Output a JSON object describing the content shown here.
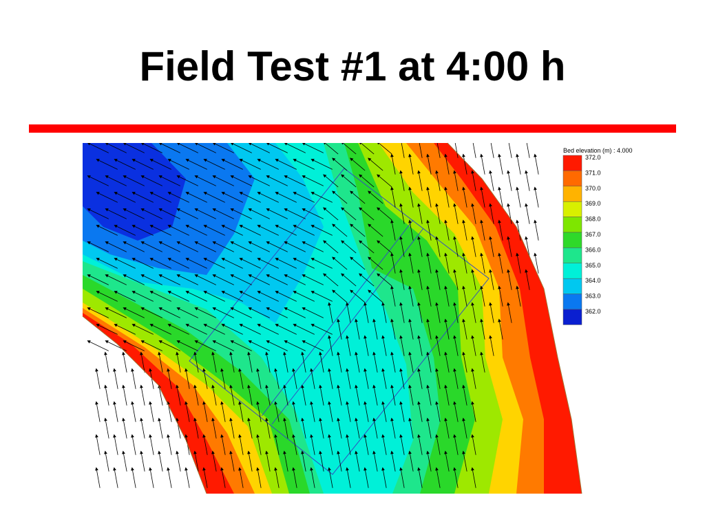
{
  "slide": {
    "title": "Field Test #1 at 4:00 h"
  },
  "legend": {
    "title": "Bed elevation (m) : 4.000",
    "levels": [
      {
        "label": "372.0",
        "color": "#ff1a00"
      },
      {
        "label": "371.0",
        "color": "#ff6a00"
      },
      {
        "label": "370.0",
        "color": "#ffb300"
      },
      {
        "label": "369.0",
        "color": "#d8f000"
      },
      {
        "label": "368.0",
        "color": "#7ee600"
      },
      {
        "label": "367.0",
        "color": "#2fd92a"
      },
      {
        "label": "366.0",
        "color": "#1ee68c"
      },
      {
        "label": "365.0",
        "color": "#00f0d8"
      },
      {
        "label": "364.0",
        "color": "#00c8f0"
      },
      {
        "label": "363.0",
        "color": "#0a78f0"
      },
      {
        "label": "362.0",
        "color": "#0a1fd0"
      }
    ]
  }
}
